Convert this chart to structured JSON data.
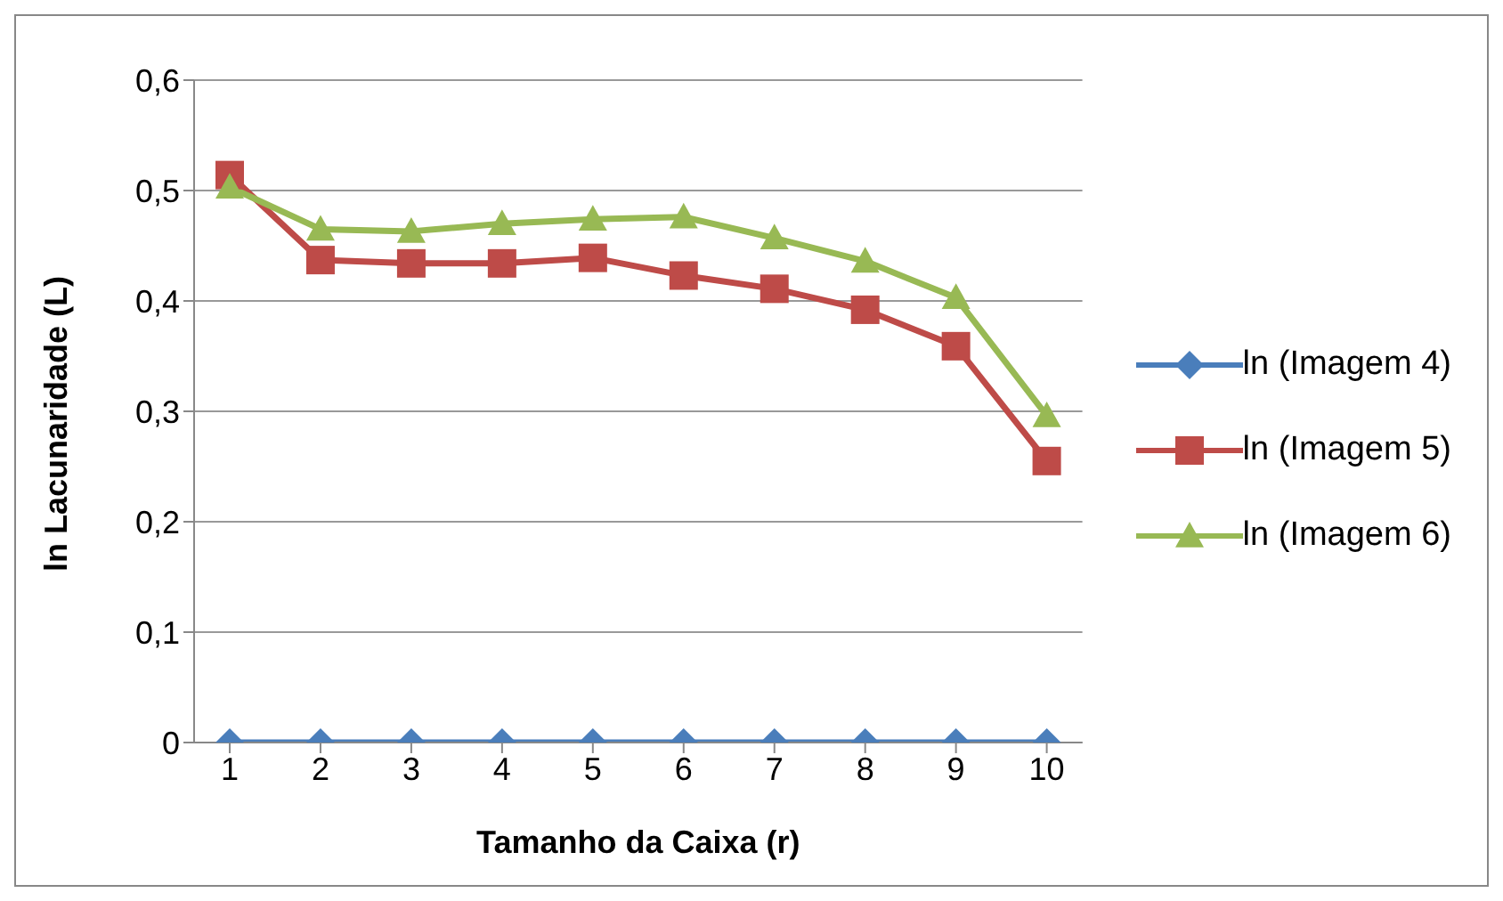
{
  "chart_data": {
    "type": "line",
    "xlabel": "Tamanho da Caixa (r)",
    "ylabel": "ln Lacunaridade (L)",
    "categories": [
      "1",
      "2",
      "3",
      "4",
      "5",
      "6",
      "7",
      "8",
      "9",
      "10"
    ],
    "series": [
      {
        "name": "ln (Imagem 4)",
        "color": "#4a7ebb",
        "marker": "diamond",
        "values": [
          0,
          0,
          0,
          0,
          0,
          0,
          0,
          0,
          0,
          0
        ]
      },
      {
        "name": "ln (Imagem 5)",
        "color": "#be4b48",
        "marker": "square",
        "values": [
          0.514,
          0.437,
          0.434,
          0.434,
          0.439,
          0.423,
          0.411,
          0.392,
          0.359,
          0.255
        ]
      },
      {
        "name": "ln (Imagem 6)",
        "color": "#98b954",
        "marker": "triangle",
        "values": [
          0.503,
          0.465,
          0.463,
          0.47,
          0.474,
          0.476,
          0.457,
          0.436,
          0.403,
          0.296
        ]
      }
    ],
    "ylim": [
      0,
      0.6
    ],
    "yticks": [
      {
        "value": 0,
        "label": "0"
      },
      {
        "value": 0.1,
        "label": "0,1"
      },
      {
        "value": 0.2,
        "label": "0,2"
      },
      {
        "value": 0.3,
        "label": "0,3"
      },
      {
        "value": 0.4,
        "label": "0,4"
      },
      {
        "value": 0.5,
        "label": "0,5"
      },
      {
        "value": 0.6,
        "label": "0,6"
      }
    ],
    "grid": "y",
    "legend": "right"
  }
}
